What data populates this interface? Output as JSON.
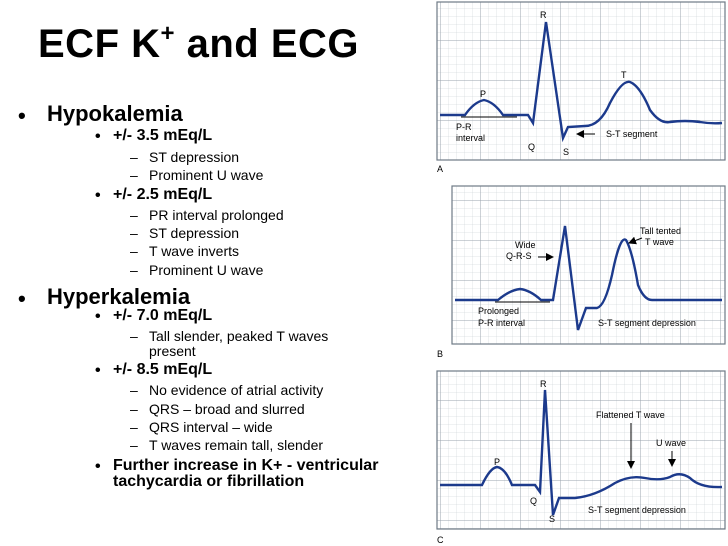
{
  "slide": {
    "title_main": "ECF K",
    "title_sup": "+",
    "title_tail": " and ECG",
    "bullet_char": "•",
    "dash_char": "–",
    "hypo": {
      "heading": "Hypokalemia",
      "items": [
        {
          "label": "+/- 3.5 mEq/L",
          "subs": [
            "ST depression",
            "Prominent U wave"
          ]
        },
        {
          "label": "+/- 2.5 mEq/L",
          "subs": [
            "PR interval prolonged",
            "ST depression",
            "T wave inverts",
            "Prominent U wave"
          ]
        }
      ]
    },
    "hyper": {
      "heading": "Hyperkalemia",
      "items": [
        {
          "label": "+/- 7.0 mEq/L",
          "subs": [
            "Tall slender, peaked T waves",
            "present"
          ]
        },
        {
          "label": "+/- 8.5 mEq/L",
          "subs": [
            "No evidence of atrial activity",
            "QRS – broad and slurred",
            "QRS interval – wide",
            "T waves remain tall, slender"
          ]
        },
        {
          "label": "Further increase in K+ - ventricular",
          "cont": "tachycardia or fibrillation"
        }
      ]
    }
  },
  "figure": {
    "panel_a": {
      "letter": "A",
      "labels": {
        "r": "R",
        "t": "T",
        "p": "P",
        "pr1": "P-R",
        "pr2": "interval",
        "q": "Q",
        "s": "S",
        "st": "S-T segment"
      }
    },
    "panel_b": {
      "letter": "B",
      "labels": {
        "wide1": "Wide",
        "wide2": "Q-R-S",
        "tall1": "Tall tented",
        "tall2": "T wave",
        "prol1": "Prolonged",
        "prol2": "P-R interval",
        "st": "S-T segment depression"
      }
    },
    "panel_c": {
      "letter": "C",
      "labels": {
        "r": "R",
        "p": "P",
        "q": "Q",
        "s": "S",
        "flat": "Flattened T wave",
        "u": "U wave",
        "st": "S-T segment depression"
      }
    },
    "colors": {
      "grid": "#9aa3ad",
      "trace": "#1c3a8c",
      "panel_border": "#6e7a86"
    }
  }
}
